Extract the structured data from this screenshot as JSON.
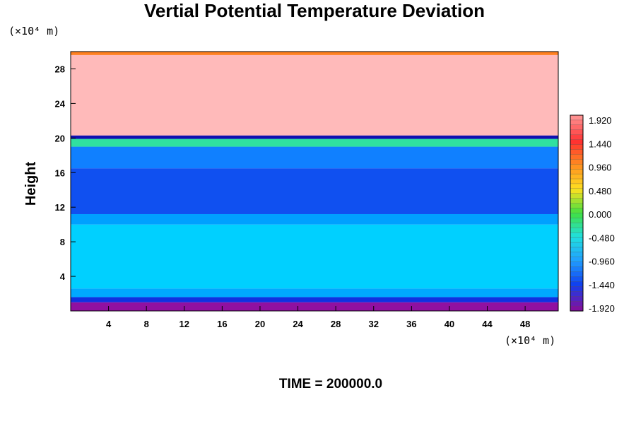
{
  "chart_data": {
    "type": "heatmap",
    "title": "Vertial Potential Temperature Deviation",
    "ylabel": "Height",
    "xlabel": "",
    "x_unit": "(×10⁴ m)",
    "y_unit": "(×10⁴ m)",
    "footer": "TIME = 200000.0",
    "xlim": [
      0,
      51.5
    ],
    "ylim": [
      0,
      30
    ],
    "x_ticks": [
      4,
      8,
      12,
      16,
      20,
      24,
      28,
      32,
      36,
      40,
      44,
      48
    ],
    "y_ticks": [
      4,
      8,
      12,
      16,
      20,
      24,
      28
    ],
    "colorbar": {
      "min": -1.92,
      "max": 1.92,
      "tick_labels": [
        "1.920",
        "1.440",
        "0.960",
        "0.480",
        "0.000",
        "-0.480",
        "-0.960",
        "-1.440",
        "-1.920"
      ],
      "colors": [
        "#ff9090",
        "#ff3030",
        "#ff9020",
        "#ffe020",
        "#40e040",
        "#20e0e0",
        "#20a0ff",
        "#1040f0",
        "#8010a0"
      ]
    },
    "bands": [
      {
        "y0": 0,
        "y1": 1.0,
        "value": -1.92,
        "color": "#9010a0"
      },
      {
        "y0": 1.0,
        "y1": 1.6,
        "value": -1.5,
        "color": "#1030e0"
      },
      {
        "y0": 1.6,
        "y1": 2.6,
        "value": -1.1,
        "color": "#00a8ff"
      },
      {
        "y0": 2.6,
        "y1": 10.0,
        "value": -0.7,
        "color": "#00d0ff"
      },
      {
        "y0": 10.0,
        "y1": 11.2,
        "value": -1.0,
        "color": "#00a0ff"
      },
      {
        "y0": 11.2,
        "y1": 16.5,
        "value": -1.4,
        "color": "#1050f0"
      },
      {
        "y0": 16.5,
        "y1": 19.0,
        "value": -1.1,
        "color": "#1080ff"
      },
      {
        "y0": 19.0,
        "y1": 19.9,
        "value": -0.3,
        "color": "#30e0a0"
      },
      {
        "y0": 19.9,
        "y1": 20.3,
        "value": -1.6,
        "color": "#1010b0"
      },
      {
        "y0": 20.3,
        "y1": 29.6,
        "value": 1.92,
        "color": "#ffbaba"
      },
      {
        "y0": 29.6,
        "y1": 30.0,
        "value": 1.2,
        "color": "#ff8020"
      }
    ]
  }
}
